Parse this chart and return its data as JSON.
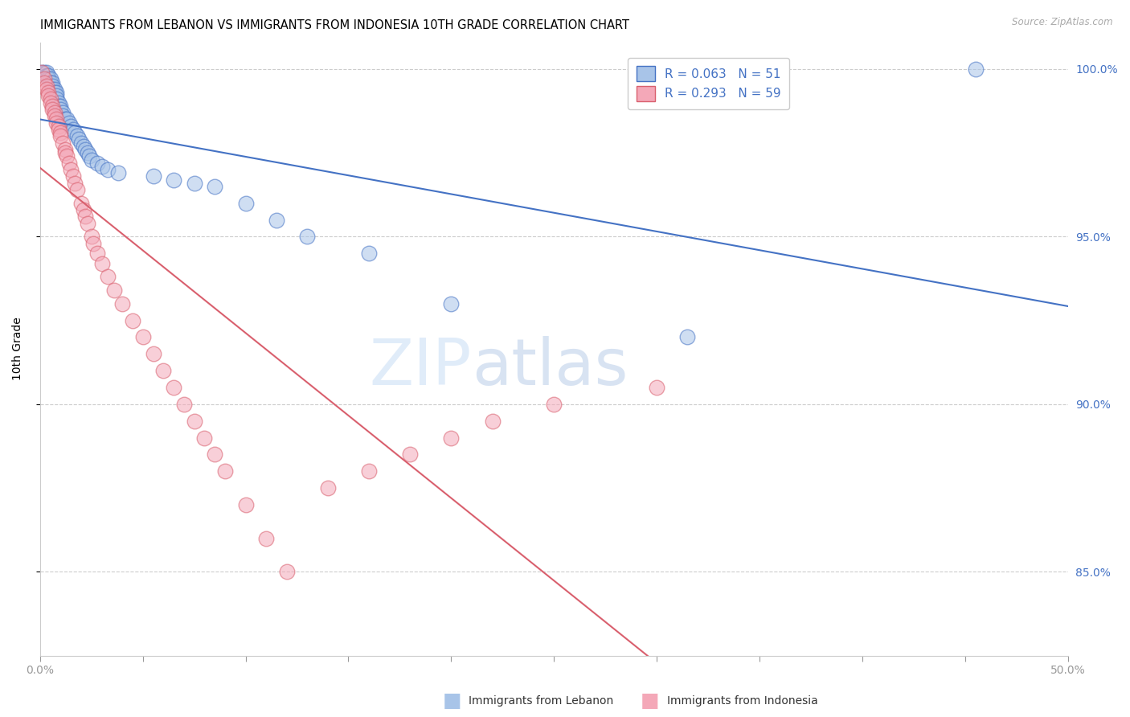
{
  "title": "IMMIGRANTS FROM LEBANON VS IMMIGRANTS FROM INDONESIA 10TH GRADE CORRELATION CHART",
  "source": "Source: ZipAtlas.com",
  "ylabel": "10th Grade",
  "xlim": [
    0.0,
    0.5
  ],
  "ylim": [
    0.825,
    1.008
  ],
  "legend_lebanon": "R = 0.063   N = 51",
  "legend_indonesia": "R = 0.293   N = 59",
  "lebanon_color": "#a8c4e8",
  "indonesia_color": "#f4a8b8",
  "trend_lebanon_color": "#4472c4",
  "trend_indonesia_color": "#d9606e",
  "watermark_zip": "ZIP",
  "watermark_atlas": "atlas",
  "lebanon_x": [
    0.001,
    0.002,
    0.003,
    0.003,
    0.004,
    0.004,
    0.005,
    0.005,
    0.006,
    0.006,
    0.006,
    0.007,
    0.007,
    0.008,
    0.008,
    0.008,
    0.009,
    0.009,
    0.01,
    0.01,
    0.011,
    0.011,
    0.012,
    0.013,
    0.014,
    0.015,
    0.016,
    0.017,
    0.018,
    0.019,
    0.02,
    0.021,
    0.022,
    0.023,
    0.024,
    0.025,
    0.028,
    0.03,
    0.033,
    0.038,
    0.055,
    0.065,
    0.075,
    0.085,
    0.1,
    0.115,
    0.13,
    0.16,
    0.2,
    0.315,
    0.455
  ],
  "lebanon_y": [
    0.999,
    0.999,
    0.999,
    0.998,
    0.998,
    0.997,
    0.997,
    0.996,
    0.996,
    0.995,
    0.994,
    0.994,
    0.993,
    0.993,
    0.992,
    0.991,
    0.99,
    0.989,
    0.989,
    0.988,
    0.987,
    0.986,
    0.985,
    0.985,
    0.984,
    0.983,
    0.982,
    0.981,
    0.98,
    0.979,
    0.978,
    0.977,
    0.976,
    0.975,
    0.974,
    0.973,
    0.972,
    0.971,
    0.97,
    0.969,
    0.968,
    0.967,
    0.966,
    0.965,
    0.96,
    0.955,
    0.95,
    0.945,
    0.93,
    0.92,
    1.0
  ],
  "indonesia_x": [
    0.001,
    0.002,
    0.002,
    0.003,
    0.003,
    0.004,
    0.004,
    0.005,
    0.005,
    0.006,
    0.006,
    0.007,
    0.007,
    0.008,
    0.008,
    0.009,
    0.009,
    0.01,
    0.01,
    0.011,
    0.012,
    0.012,
    0.013,
    0.014,
    0.015,
    0.016,
    0.017,
    0.018,
    0.02,
    0.021,
    0.022,
    0.023,
    0.025,
    0.026,
    0.028,
    0.03,
    0.033,
    0.036,
    0.04,
    0.045,
    0.05,
    0.055,
    0.06,
    0.065,
    0.07,
    0.075,
    0.08,
    0.085,
    0.09,
    0.1,
    0.11,
    0.12,
    0.14,
    0.16,
    0.18,
    0.2,
    0.22,
    0.25,
    0.3
  ],
  "indonesia_y": [
    0.999,
    0.997,
    0.996,
    0.995,
    0.994,
    0.993,
    0.992,
    0.991,
    0.99,
    0.989,
    0.988,
    0.987,
    0.986,
    0.985,
    0.984,
    0.983,
    0.982,
    0.981,
    0.98,
    0.978,
    0.976,
    0.975,
    0.974,
    0.972,
    0.97,
    0.968,
    0.966,
    0.964,
    0.96,
    0.958,
    0.956,
    0.954,
    0.95,
    0.948,
    0.945,
    0.942,
    0.938,
    0.934,
    0.93,
    0.925,
    0.92,
    0.915,
    0.91,
    0.905,
    0.9,
    0.895,
    0.89,
    0.885,
    0.88,
    0.87,
    0.86,
    0.85,
    0.875,
    0.88,
    0.885,
    0.89,
    0.895,
    0.9,
    0.905
  ]
}
